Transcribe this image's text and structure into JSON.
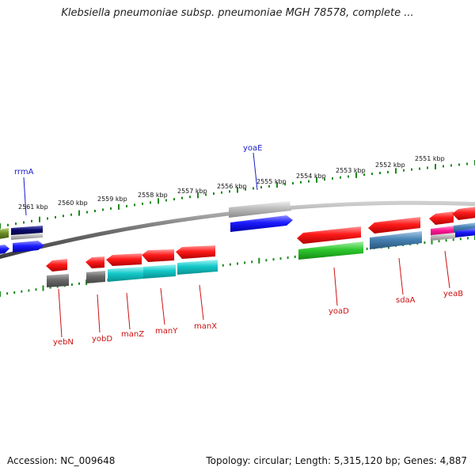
{
  "title": "Klebsiella pneumoniae subsp. pneumoniae MGH 78578, complete ...",
  "footer": {
    "accession": "Accession: NC_009648",
    "topology": "Topology: circular; Length: 5,315,120 bp; Genes: 4,887"
  },
  "colors": {
    "backbone": "#777777",
    "tick": "#1b8a1b",
    "label_top": "#1a1acc",
    "label_bottom": "#cc1111",
    "red": "#ff1a1a",
    "blue": "#1a1aff",
    "gray": "#9e9e9e",
    "dark_gray": "#6a6a6a",
    "cyan": "#14c8c8",
    "green": "#2ec82e",
    "steelblue": "#4682b4",
    "pink": "#ff1493",
    "olive": "#6b8e23",
    "navy": "#0a0a6e"
  },
  "scale_labels": [
    "2561 kbp",
    "2560 kbp",
    "2559 kbp",
    "2558 kbp",
    "2557 kbp",
    "2556 kbp",
    "2555 kbp",
    "2554 kbp",
    "2553 kbp",
    "2552 kbp",
    "2551 kbp"
  ],
  "gene_labels": {
    "rrmA": "rrmA",
    "yoaE": "yoaE",
    "yebN": "yebN",
    "yobD": "yobD",
    "manZ": "manZ",
    "manY": "manY",
    "manX": "manX",
    "yoaD": "yoaD",
    "sdaA": "sdaA",
    "yeaB": "yeaB"
  }
}
